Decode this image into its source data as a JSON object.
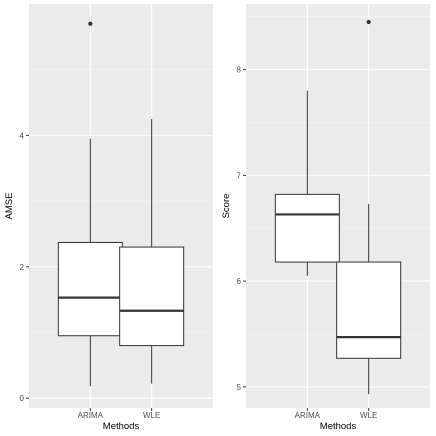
{
  "chart_data": [
    {
      "type": "box",
      "xlabel": "Methods",
      "ylabel": "AMSE",
      "categories": [
        "ARIMA",
        "WLE"
      ],
      "ylim": [
        -0.15,
        6.0
      ],
      "yticks": [
        0,
        2,
        4
      ],
      "ytick_labels": [
        "0",
        "2",
        "4"
      ],
      "minor_yticks": [
        1,
        3,
        5
      ],
      "grid": true,
      "boxes": [
        {
          "category": "ARIMA",
          "whisker_low": 0.18,
          "q1": 0.95,
          "median": 1.53,
          "q3": 2.37,
          "whisker_high": 3.95,
          "outliers": [
            5.7
          ]
        },
        {
          "category": "WLE",
          "whisker_low": 0.22,
          "q1": 0.8,
          "median": 1.33,
          "q3": 2.3,
          "whisker_high": 4.25,
          "outliers": []
        }
      ]
    },
    {
      "type": "box",
      "xlabel": "Methods",
      "ylabel": "Score",
      "categories": [
        "ARIMA",
        "WLE"
      ],
      "ylim": [
        4.8,
        8.62
      ],
      "yticks": [
        5,
        6,
        7,
        8
      ],
      "ytick_labels": [
        "5",
        "6",
        "7",
        "8"
      ],
      "minor_yticks": [
        5.5,
        6.5,
        7.5,
        8.5
      ],
      "grid": true,
      "boxes": [
        {
          "category": "ARIMA",
          "whisker_low": 6.05,
          "q1": 6.18,
          "median": 6.63,
          "q3": 6.82,
          "whisker_high": 7.8,
          "outliers": []
        },
        {
          "category": "WLE",
          "whisker_low": 4.93,
          "q1": 5.27,
          "median": 5.47,
          "q3": 6.18,
          "whisker_high": 6.73,
          "outliers": [
            8.45
          ]
        }
      ]
    }
  ],
  "colors": {
    "panel_bg": "#ebebeb",
    "grid_major": "#ffffff",
    "grid_minor": "#f5f5f5",
    "box_fill": "#ffffff",
    "box_line": "#333333",
    "tick_text": "#4d4d4d"
  }
}
